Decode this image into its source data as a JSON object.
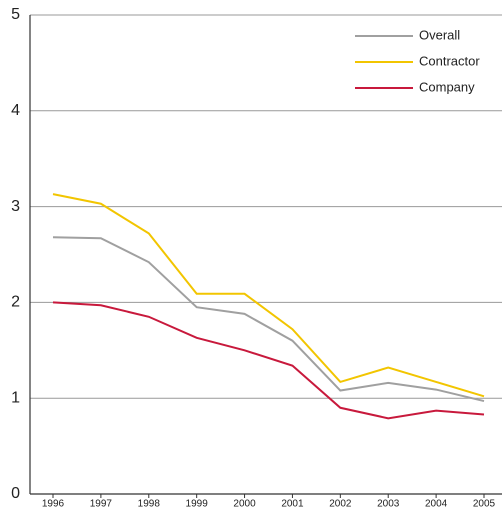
{
  "chart_data": {
    "type": "line",
    "categories": [
      "1996",
      "1997",
      "1998",
      "1999",
      "2000",
      "2001",
      "2002",
      "2003",
      "2004",
      "2005"
    ],
    "series": [
      {
        "name": "Overall",
        "color": "#a0a0a0",
        "values": [
          2.68,
          2.67,
          2.42,
          1.95,
          1.88,
          1.6,
          1.08,
          1.16,
          1.09,
          0.97
        ]
      },
      {
        "name": "Contractor",
        "color": "#f2c500",
        "values": [
          3.13,
          3.03,
          2.72,
          2.09,
          2.09,
          1.72,
          1.17,
          1.32,
          1.17,
          1.02
        ]
      },
      {
        "name": "Company",
        "color": "#c8193c",
        "values": [
          2.0,
          1.97,
          1.85,
          1.63,
          1.5,
          1.34,
          0.9,
          0.79,
          0.87,
          0.83
        ]
      }
    ],
    "ylim": [
      0,
      5
    ],
    "yticks": [
      0,
      1,
      2,
      3,
      4,
      5
    ],
    "grid": true,
    "legend": "upper right"
  }
}
